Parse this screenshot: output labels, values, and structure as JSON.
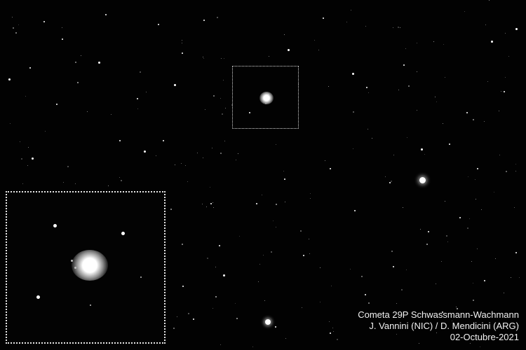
{
  "image": {
    "subject": "star-field-with-comet",
    "background_color": "#020202",
    "frame_color": "#e6e6e6"
  },
  "caption": {
    "line1": "Cometa 29P Schwassmann-Wachmann",
    "line2": "J. Vannini (NIC) / D. Mendicini (ARG)",
    "line3": "02-Octubre-2021"
  }
}
